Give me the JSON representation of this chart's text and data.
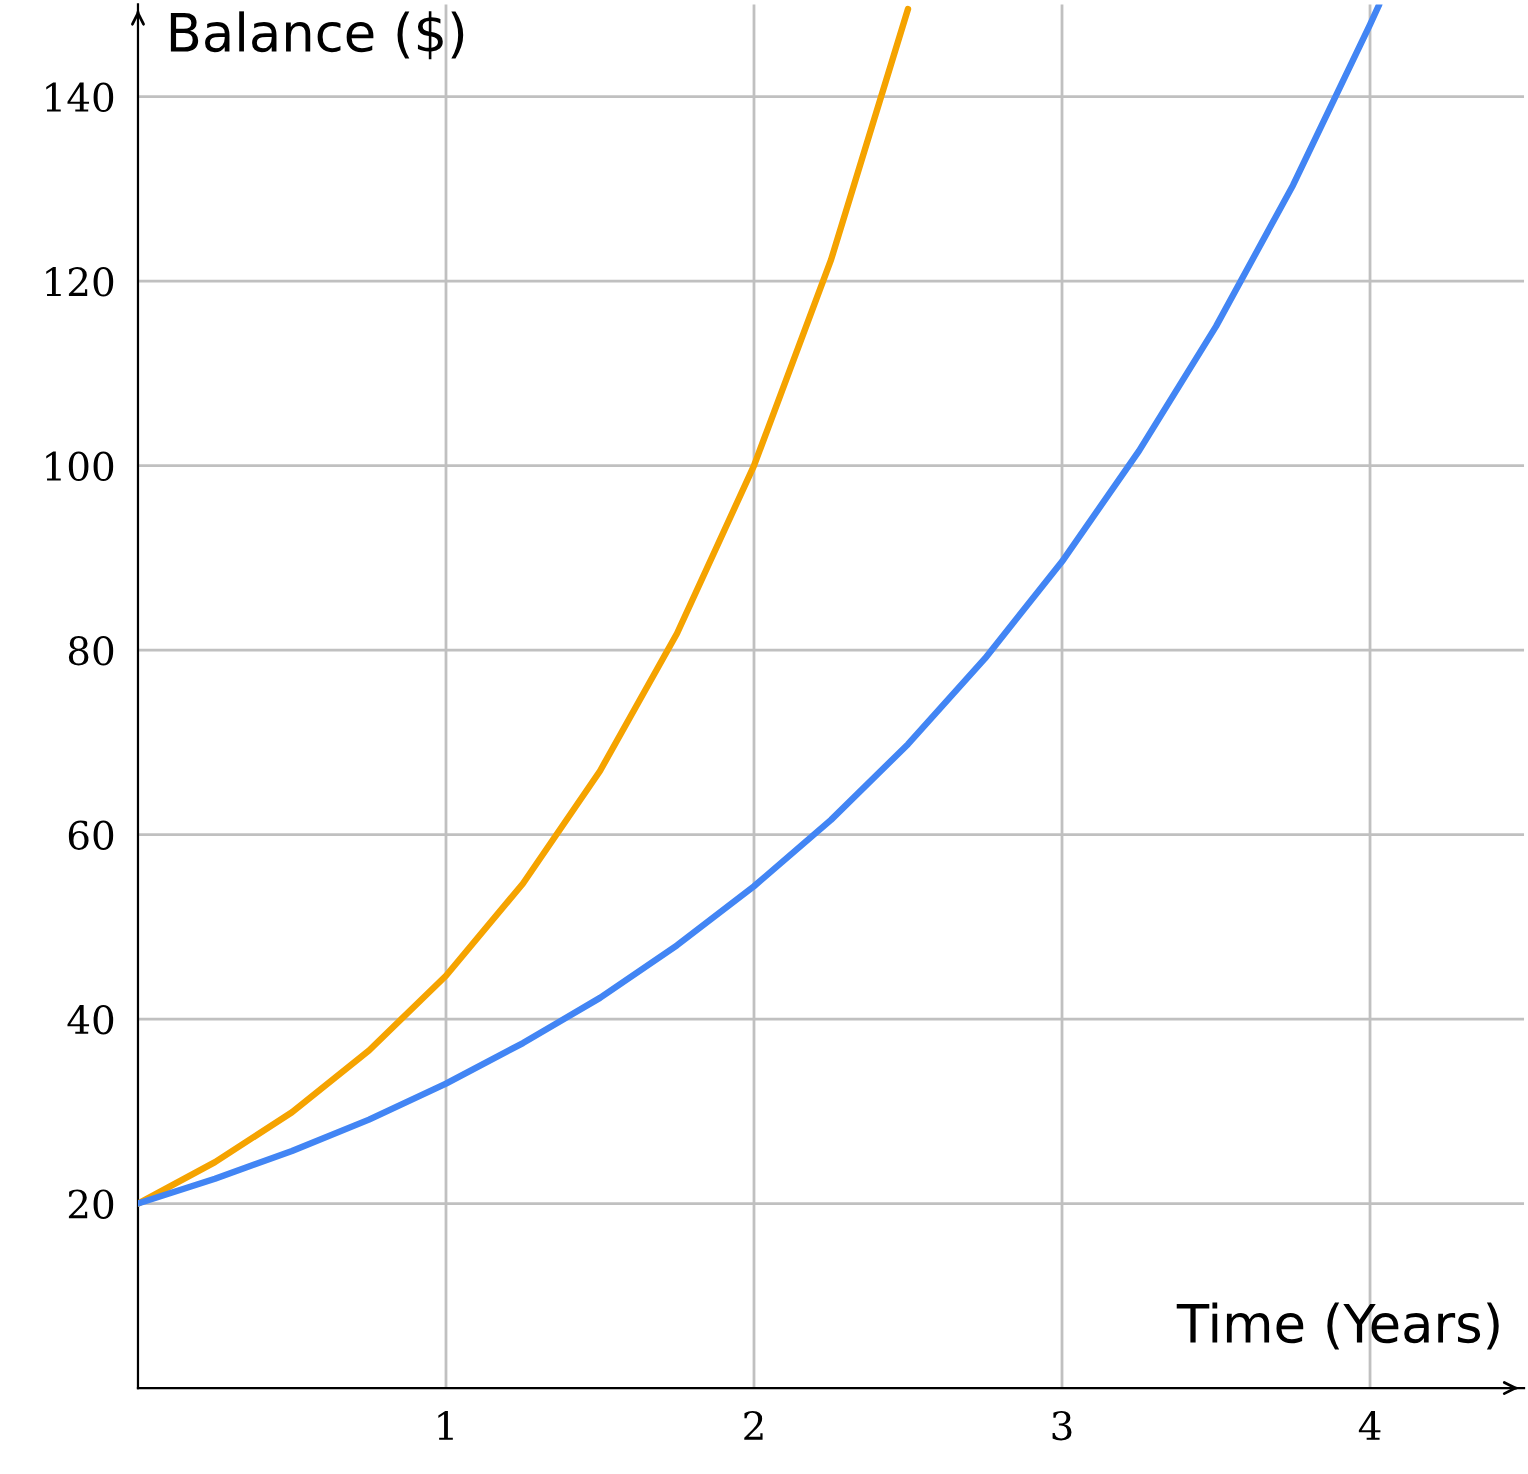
{
  "chart_data": {
    "type": "line",
    "xlabel": "Time (Years)",
    "ylabel": "Balance ($)",
    "series": [
      {
        "color": "#f5a300",
        "x": [
          0,
          0.25,
          0.5,
          0.75,
          1,
          1.25,
          1.5,
          1.75,
          2,
          2.25,
          2.5
        ],
        "values": [
          20,
          24.5,
          29.9,
          36.6,
          44.7,
          54.7,
          66.9,
          81.8,
          100,
          122.3,
          149.5
        ]
      },
      {
        "color": "#4285f4",
        "x": [
          0,
          0.25,
          0.5,
          0.75,
          1,
          1.25,
          1.5,
          1.75,
          2,
          2.25,
          2.5,
          2.75,
          3,
          3.25,
          3.5,
          3.75,
          4,
          4.03
        ],
        "values": [
          20,
          22.7,
          25.7,
          29.1,
          33,
          37.4,
          42.3,
          48,
          54.4,
          61.6,
          69.8,
          79.1,
          89.6,
          101.6,
          115.1,
          130.4,
          147.8,
          150
        ]
      }
    ],
    "xlim": [
      0,
      4.5
    ],
    "ylim": [
      0,
      150
    ],
    "xticks": [
      1,
      2,
      3,
      4
    ],
    "yticks": [
      20,
      40,
      60,
      80,
      100,
      120,
      140
    ],
    "grid": true,
    "legend": false,
    "marker": "none",
    "line_style": "solid"
  }
}
